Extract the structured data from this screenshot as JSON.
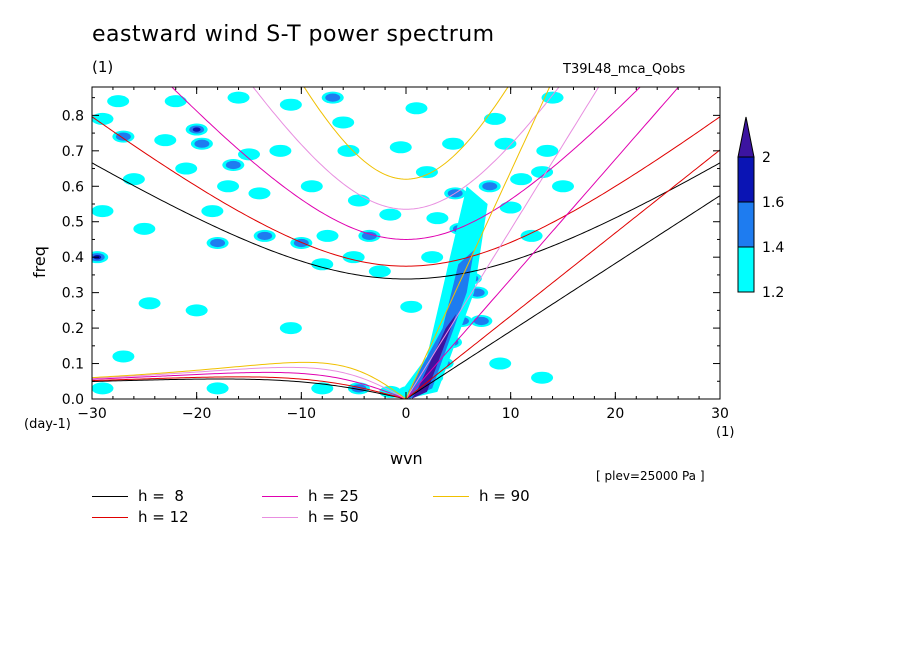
{
  "title": "eastward wind S-T power spectrum",
  "subtitle_left": "(1)",
  "subtitle_right": "T39L48_mca_Qobs",
  "footnote": "[ plev=25000 Pa ]",
  "chart_data": {
    "type": "heatmap",
    "title": "eastward wind S-T power spectrum",
    "xlabel": "wvn",
    "ylabel": "freq",
    "x_unit": "(1)",
    "y_unit": "(day-1)",
    "xlim": [
      -30,
      30
    ],
    "ylim": [
      0,
      0.88
    ],
    "xticks": [
      -30,
      -20,
      -10,
      0,
      10,
      20,
      30
    ],
    "xtick_labels": [
      "−30",
      "−20",
      "−10",
      "0",
      "10",
      "20",
      "30"
    ],
    "yticks": [
      0,
      0.1,
      0.2,
      0.3,
      0.4,
      0.5,
      0.6,
      0.7,
      0.8
    ],
    "ytick_labels": [
      "0.0",
      "0.1",
      "0.2",
      "0.3",
      "0.4",
      "0.5",
      "0.6",
      "0.7",
      "0.8"
    ],
    "colorbar": {
      "levels": [
        1.2,
        1.4,
        1.6,
        2
      ],
      "labels": [
        "1.2",
        "1.4",
        "1.6",
        "2"
      ],
      "colors": [
        "#00ffff",
        "#1e7cf0",
        "#0a14b4",
        "#3c14a0"
      ]
    },
    "blobs": [
      {
        "x": -29,
        "y": 0.79,
        "level": 1
      },
      {
        "x": -29,
        "y": 0.53,
        "level": 1
      },
      {
        "x": -29.5,
        "y": 0.4,
        "level": 3
      },
      {
        "x": -27,
        "y": 0.74,
        "level": 2
      },
      {
        "x": -26,
        "y": 0.62,
        "level": 1
      },
      {
        "x": -25,
        "y": 0.48,
        "level": 1
      },
      {
        "x": -24.5,
        "y": 0.27,
        "level": 1
      },
      {
        "x": -23,
        "y": 0.73,
        "level": 1
      },
      {
        "x": -22,
        "y": 0.84,
        "level": 1
      },
      {
        "x": -21,
        "y": 0.65,
        "level": 1
      },
      {
        "x": -20,
        "y": 0.76,
        "level": 3
      },
      {
        "x": -19.5,
        "y": 0.72,
        "level": 2
      },
      {
        "x": -18.5,
        "y": 0.53,
        "level": 1
      },
      {
        "x": -18,
        "y": 0.44,
        "level": 2
      },
      {
        "x": -17,
        "y": 0.6,
        "level": 1
      },
      {
        "x": -16,
        "y": 0.85,
        "level": 1
      },
      {
        "x": -15,
        "y": 0.69,
        "level": 1
      },
      {
        "x": -16.5,
        "y": 0.66,
        "level": 2
      },
      {
        "x": -14,
        "y": 0.58,
        "level": 1
      },
      {
        "x": -13.5,
        "y": 0.46,
        "level": 2
      },
      {
        "x": -12,
        "y": 0.7,
        "level": 1
      },
      {
        "x": -11,
        "y": 0.83,
        "level": 1
      },
      {
        "x": -10,
        "y": 0.44,
        "level": 2
      },
      {
        "x": -9,
        "y": 0.6,
        "level": 1
      },
      {
        "x": -8,
        "y": 0.38,
        "level": 1
      },
      {
        "x": -7.5,
        "y": 0.46,
        "level": 1
      },
      {
        "x": -6,
        "y": 0.78,
        "level": 1
      },
      {
        "x": -5.5,
        "y": 0.7,
        "level": 1
      },
      {
        "x": -7,
        "y": 0.85,
        "level": 2
      },
      {
        "x": -4.5,
        "y": 0.56,
        "level": 1
      },
      {
        "x": -5,
        "y": 0.4,
        "level": 1
      },
      {
        "x": -3.5,
        "y": 0.46,
        "level": 2
      },
      {
        "x": -2.5,
        "y": 0.36,
        "level": 1
      },
      {
        "x": -1.5,
        "y": 0.52,
        "level": 1
      },
      {
        "x": -0.5,
        "y": 0.71,
        "level": 1
      },
      {
        "x": 1,
        "y": 0.82,
        "level": 1
      },
      {
        "x": 2,
        "y": 0.64,
        "level": 1
      },
      {
        "x": 3,
        "y": 0.51,
        "level": 1
      },
      {
        "x": 4.5,
        "y": 0.72,
        "level": 1
      },
      {
        "x": 4.7,
        "y": 0.58,
        "level": 2
      },
      {
        "x": 5.2,
        "y": 0.48,
        "level": 2
      },
      {
        "x": 5.6,
        "y": 0.4,
        "level": 2
      },
      {
        "x": 6.2,
        "y": 0.34,
        "level": 3
      },
      {
        "x": 6.8,
        "y": 0.3,
        "level": 2
      },
      {
        "x": 7.2,
        "y": 0.22,
        "level": 2
      },
      {
        "x": 8,
        "y": 0.6,
        "level": 2
      },
      {
        "x": 8.5,
        "y": 0.79,
        "level": 1
      },
      {
        "x": 9.5,
        "y": 0.72,
        "level": 1
      },
      {
        "x": 10,
        "y": 0.54,
        "level": 1
      },
      {
        "x": 11,
        "y": 0.62,
        "level": 1
      },
      {
        "x": 12,
        "y": 0.46,
        "level": 1
      },
      {
        "x": 13,
        "y": 0.64,
        "level": 1
      },
      {
        "x": 13.5,
        "y": 0.7,
        "level": 1
      },
      {
        "x": 14,
        "y": 0.85,
        "level": 1
      },
      {
        "x": 15,
        "y": 0.6,
        "level": 1
      },
      {
        "x": -4.5,
        "y": 0.03,
        "level": 2
      },
      {
        "x": -8,
        "y": 0.03,
        "level": 1
      },
      {
        "x": -18,
        "y": 0.03,
        "level": 1
      },
      {
        "x": -29,
        "y": 0.03,
        "level": 1
      },
      {
        "x": -1.5,
        "y": 0.02,
        "level": 1
      },
      {
        "x": 0.3,
        "y": 0.02,
        "level": 3
      },
      {
        "x": 2.5,
        "y": 0.06,
        "level": 2
      },
      {
        "x": 3.5,
        "y": 0.1,
        "level": 3
      },
      {
        "x": 4.3,
        "y": 0.16,
        "level": 3
      },
      {
        "x": 5.3,
        "y": 0.22,
        "level": 2
      },
      {
        "x": -27.5,
        "y": 0.84,
        "level": 1
      },
      {
        "x": -11,
        "y": 0.2,
        "level": 1
      },
      {
        "x": -20,
        "y": 0.25,
        "level": 1
      },
      {
        "x": -27,
        "y": 0.12,
        "level": 1
      },
      {
        "x": 9,
        "y": 0.1,
        "level": 1
      },
      {
        "x": 13,
        "y": 0.06,
        "level": 1
      },
      {
        "x": 0.5,
        "y": 0.26,
        "level": 1
      },
      {
        "x": 2.5,
        "y": 0.4,
        "level": 1
      }
    ],
    "series": [
      {
        "name": "h = 8",
        "h": 8,
        "color": "#000000"
      },
      {
        "name": "h = 12",
        "h": 12,
        "color": "#e00000"
      },
      {
        "name": "h = 25",
        "h": 25,
        "color": "#e000b0"
      },
      {
        "name": "h = 50",
        "h": 50,
        "color": "#e88ee0"
      },
      {
        "name": "h = 90",
        "h": 90,
        "color": "#f0c000"
      }
    ]
  },
  "legend": [
    {
      "label": "h =  8",
      "color": "#000000"
    },
    {
      "label": "h = 12",
      "color": "#e00000"
    },
    {
      "label": "h = 25",
      "color": "#e000b0"
    },
    {
      "label": "h = 50",
      "color": "#e88ee0"
    },
    {
      "label": "h = 90",
      "color": "#f0c000"
    }
  ]
}
